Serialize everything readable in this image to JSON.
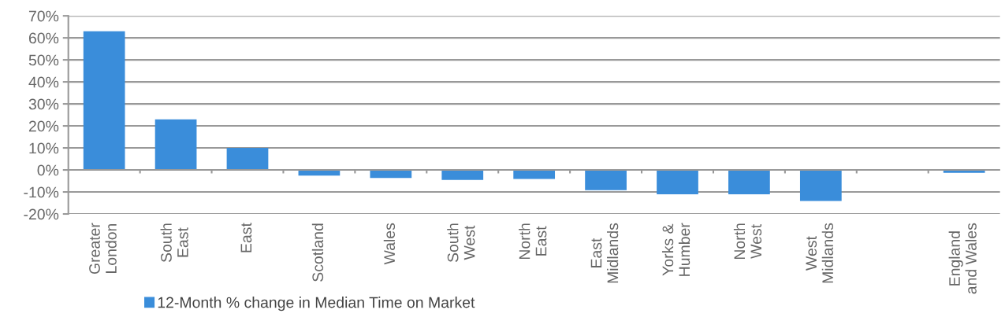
{
  "chart_data": {
    "type": "bar",
    "categories": [
      "Greater\nLondon",
      "South\nEast",
      "East",
      "Scotland",
      "Wales",
      "South\nWest",
      "North\nEast",
      "East\nMidlands",
      "Yorks &\nHumber",
      "North\nWest",
      "West\nMidlands",
      null,
      "England\nand Wales"
    ],
    "series": [
      {
        "name": "12-Month % change in Median Time on Market",
        "color": "#3a8dda",
        "values": [
          63,
          23,
          10,
          -2.6,
          -3.6,
          -4.5,
          -4.1,
          -9.2,
          -11.1,
          -11.1,
          -14.1,
          null,
          -1.3
        ]
      }
    ],
    "ylim": [
      -20,
      70
    ],
    "yticks": [
      {
        "value": -20,
        "label": "-20%"
      },
      {
        "value": -10,
        "label": "-10%"
      },
      {
        "value": 0,
        "label": "0%"
      },
      {
        "value": 10,
        "label": "10%"
      },
      {
        "value": 20,
        "label": "20%"
      },
      {
        "value": 30,
        "label": "30%"
      },
      {
        "value": 40,
        "label": "40%"
      },
      {
        "value": 50,
        "label": "50%"
      },
      {
        "value": 60,
        "label": "60%"
      },
      {
        "value": 70,
        "label": "70%"
      }
    ],
    "grid": "y",
    "legend": "bottom left"
  }
}
